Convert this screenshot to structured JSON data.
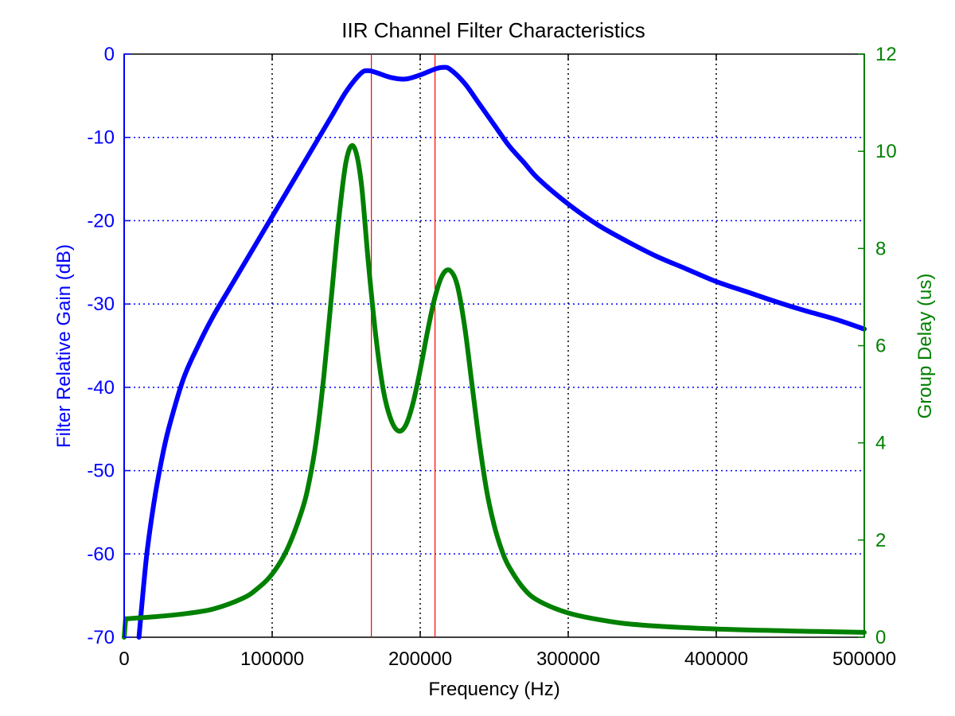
{
  "chart_data": {
    "type": "line",
    "title": "IIR Channel Filter Characteristics",
    "xlabel": "Frequency (Hz)",
    "ylabel_left": "Filter Relative Gain (dB)",
    "ylabel_right": "Group Delay (us)",
    "xlim": [
      0,
      500000
    ],
    "ylim_left": [
      -70,
      0
    ],
    "ylim_right": [
      0,
      12
    ],
    "x_ticks": [
      "0",
      "100000",
      "200000",
      "300000",
      "400000",
      "500000"
    ],
    "y_left_ticks": [
      "0",
      "-10",
      "-20",
      "-30",
      "-40",
      "-50",
      "-60",
      "-70"
    ],
    "y_right_ticks": [
      "0",
      "2",
      "4",
      "6",
      "8",
      "10",
      "12"
    ],
    "grid": true,
    "colors": {
      "gain": "#0000ff",
      "delay": "#008000",
      "markers": "#ff0000"
    },
    "vertical_markers": [
      167000,
      210000
    ],
    "series": [
      {
        "axis": "left",
        "x": [
          10000,
          15000,
          20000,
          25000,
          30000,
          40000,
          50000,
          60000,
          70000,
          80000,
          90000,
          100000,
          110000,
          120000,
          130000,
          140000,
          150000,
          160000,
          165000,
          170000,
          180000,
          190000,
          200000,
          210000,
          215000,
          220000,
          230000,
          240000,
          250000,
          260000,
          270000,
          280000,
          300000,
          320000,
          340000,
          360000,
          380000,
          400000,
          420000,
          440000,
          460000,
          480000,
          500000
        ],
        "values": [
          -70,
          -60.5,
          -54,
          -49,
          -45,
          -39,
          -35,
          -31.5,
          -28.5,
          -25.5,
          -22.5,
          -19.5,
          -16.5,
          -13.5,
          -10.5,
          -7.5,
          -4.5,
          -2.3,
          -2.0,
          -2.2,
          -2.8,
          -3.0,
          -2.5,
          -1.8,
          -1.6,
          -1.8,
          -3.5,
          -6.0,
          -8.5,
          -11.0,
          -13.0,
          -15.0,
          -18.0,
          -20.5,
          -22.5,
          -24.3,
          -25.8,
          -27.3,
          -28.5,
          -29.7,
          -30.8,
          -31.8,
          -33.0
        ]
      },
      {
        "axis": "right",
        "x": [
          1000,
          20000,
          40000,
          60000,
          80000,
          90000,
          100000,
          110000,
          120000,
          125000,
          130000,
          135000,
          140000,
          145000,
          150000,
          155000,
          160000,
          165000,
          170000,
          175000,
          180000,
          185000,
          190000,
          195000,
          200000,
          205000,
          210000,
          215000,
          220000,
          225000,
          230000,
          235000,
          240000,
          245000,
          250000,
          255000,
          260000,
          270000,
          280000,
          300000,
          325000,
          350000,
          400000,
          450000,
          500000
        ],
        "values": [
          0.38,
          0.42,
          0.48,
          0.58,
          0.8,
          1.0,
          1.3,
          1.8,
          2.6,
          3.2,
          4.1,
          5.4,
          7.0,
          8.6,
          9.8,
          10.1,
          9.4,
          7.7,
          6.2,
          5.1,
          4.5,
          4.25,
          4.35,
          4.8,
          5.5,
          6.3,
          7.0,
          7.45,
          7.55,
          7.25,
          6.4,
          5.2,
          4.0,
          3.0,
          2.3,
          1.8,
          1.45,
          1.0,
          0.75,
          0.5,
          0.34,
          0.25,
          0.17,
          0.13,
          0.1
        ]
      }
    ]
  }
}
